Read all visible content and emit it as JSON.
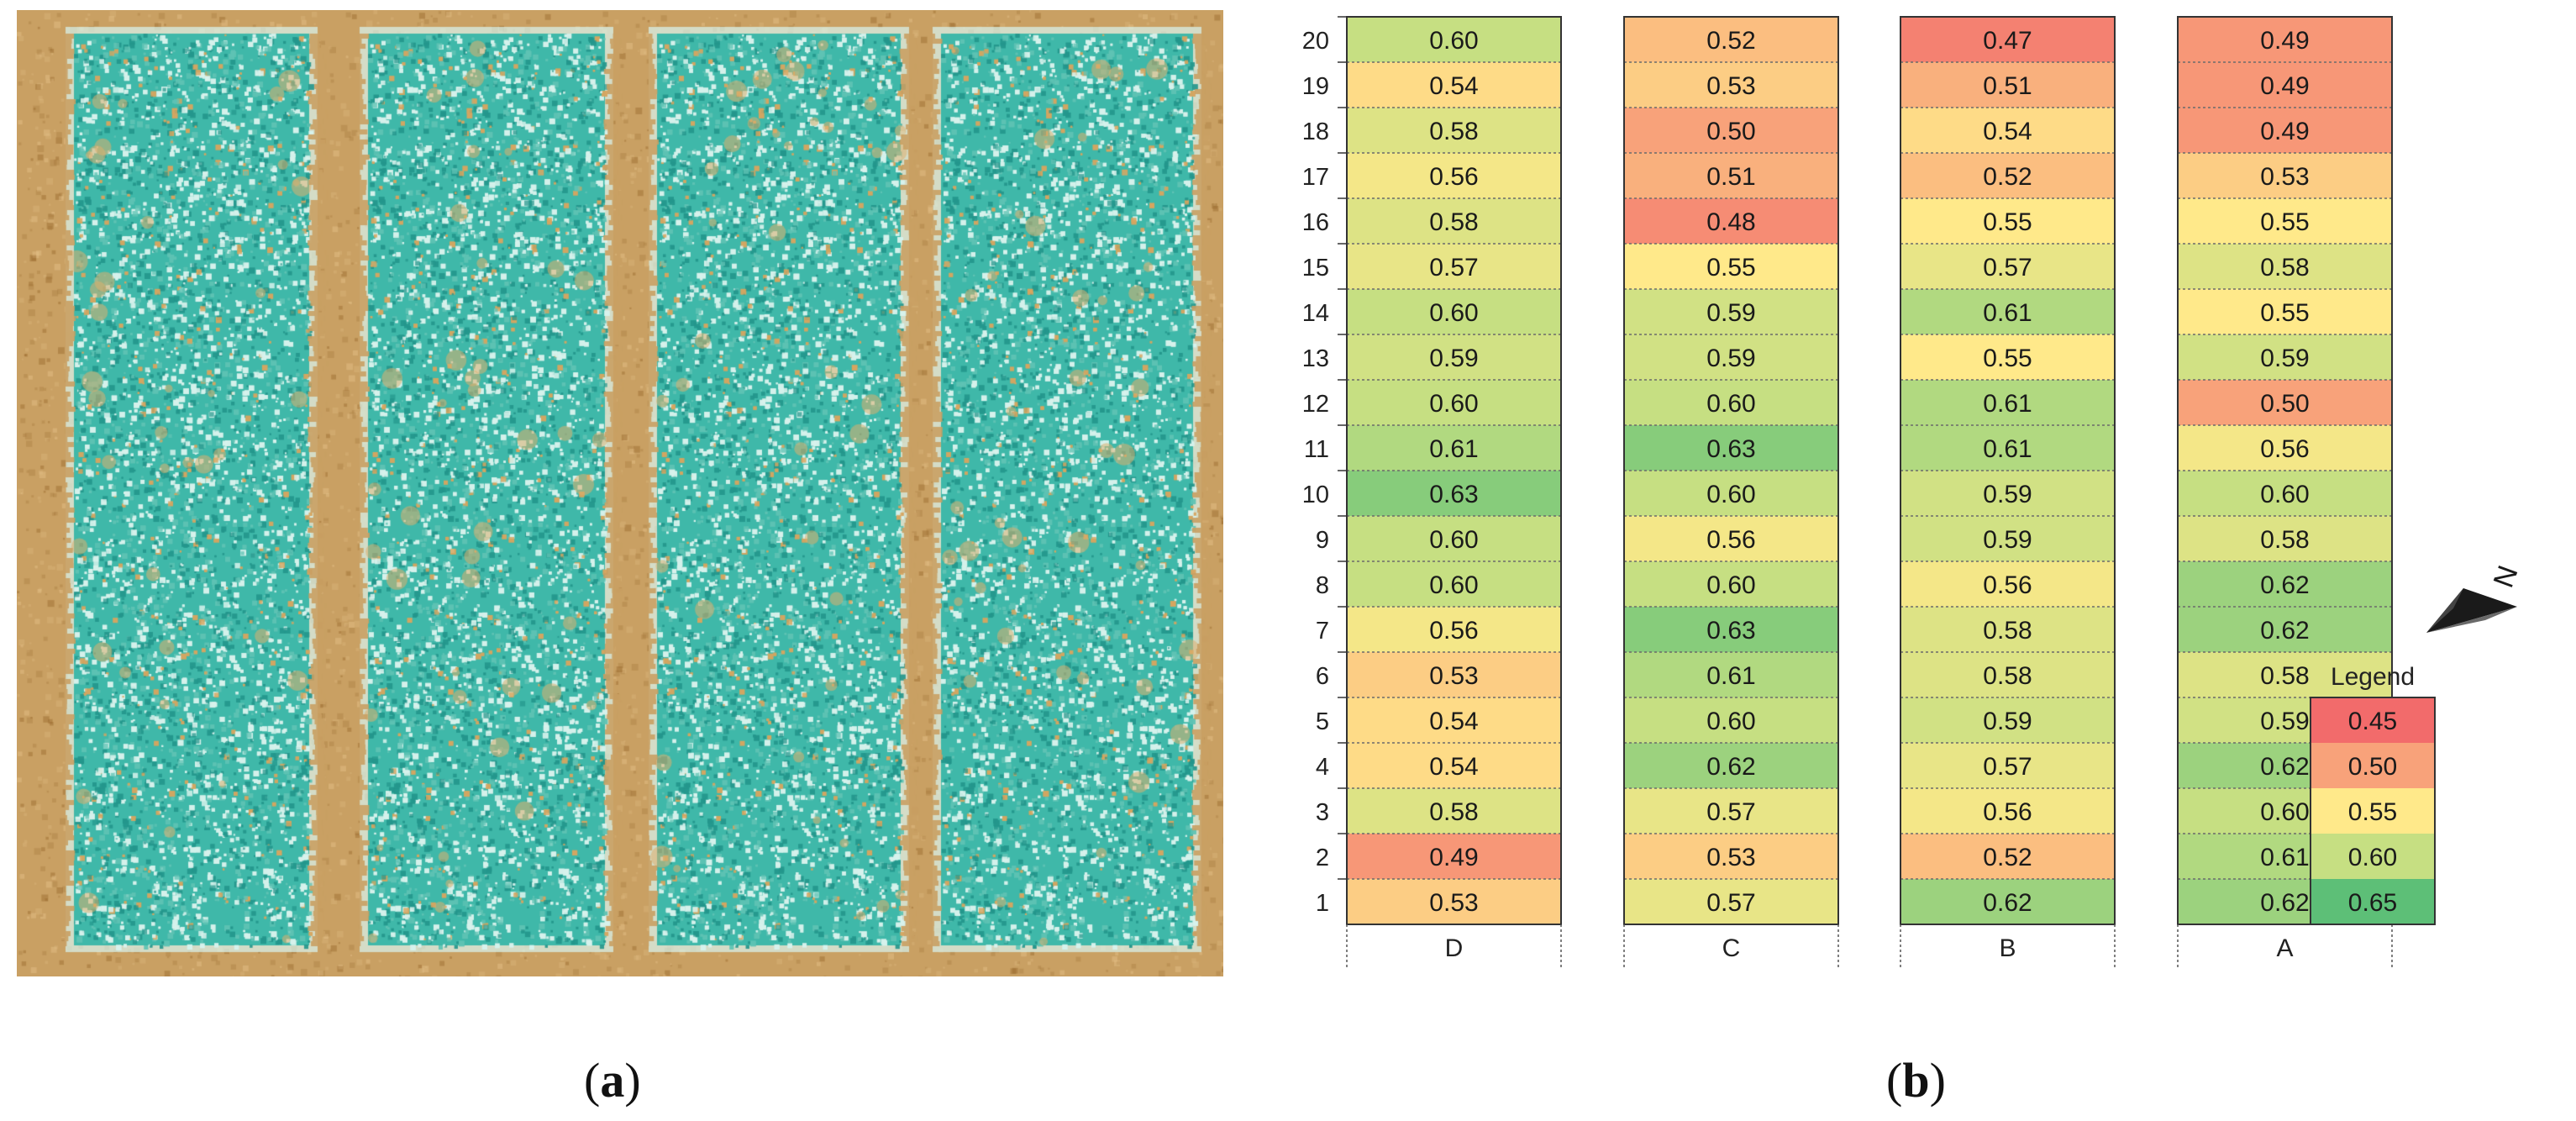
{
  "panels": {
    "a_label": "a",
    "b_label": "b"
  },
  "aerial_image": {
    "colors": {
      "soil": "#c9a063",
      "canopy": "#3fb8a9",
      "canopy_light": "#c8ece4"
    }
  },
  "chart_data": {
    "type": "heatmap",
    "columns": [
      "D",
      "C",
      "B",
      "A"
    ],
    "rows": [
      1,
      2,
      3,
      4,
      5,
      6,
      7,
      8,
      9,
      10,
      11,
      12,
      13,
      14,
      15,
      16,
      17,
      18,
      19,
      20
    ],
    "values": {
      "D": [
        0.53,
        0.49,
        0.58,
        0.54,
        0.54,
        0.53,
        0.56,
        0.6,
        0.6,
        0.63,
        0.61,
        0.6,
        0.59,
        0.6,
        0.57,
        0.58,
        0.56,
        0.58,
        0.54,
        0.6
      ],
      "C": [
        0.57,
        0.53,
        0.57,
        0.62,
        0.6,
        0.61,
        0.63,
        0.6,
        0.56,
        0.6,
        0.63,
        0.6,
        0.59,
        0.59,
        0.55,
        0.48,
        0.51,
        0.5,
        0.53,
        0.52
      ],
      "B": [
        0.62,
        0.52,
        0.56,
        0.57,
        0.59,
        0.58,
        0.58,
        0.56,
        0.59,
        0.59,
        0.61,
        0.61,
        0.55,
        0.61,
        0.57,
        0.55,
        0.52,
        0.54,
        0.51,
        0.47
      ],
      "A": [
        0.62,
        0.61,
        0.6,
        0.62,
        0.59,
        0.58,
        0.62,
        0.62,
        0.58,
        0.6,
        0.56,
        0.5,
        0.59,
        0.55,
        0.58,
        0.55,
        0.53,
        0.49,
        0.49,
        0.49
      ]
    },
    "legend": {
      "title": "Legend",
      "entries": [
        {
          "label": "0.45",
          "value": 0.45,
          "color": "#f26b6b"
        },
        {
          "label": "0.50",
          "value": 0.5,
          "color": "#f8a27a"
        },
        {
          "label": "0.55",
          "value": 0.55,
          "color": "#ffe98a"
        },
        {
          "label": "0.60",
          "value": 0.6,
          "color": "#c6df82"
        },
        {
          "label": "0.65",
          "value": 0.65,
          "color": "#5dbf77"
        }
      ]
    },
    "north_arrow_label": "N"
  }
}
